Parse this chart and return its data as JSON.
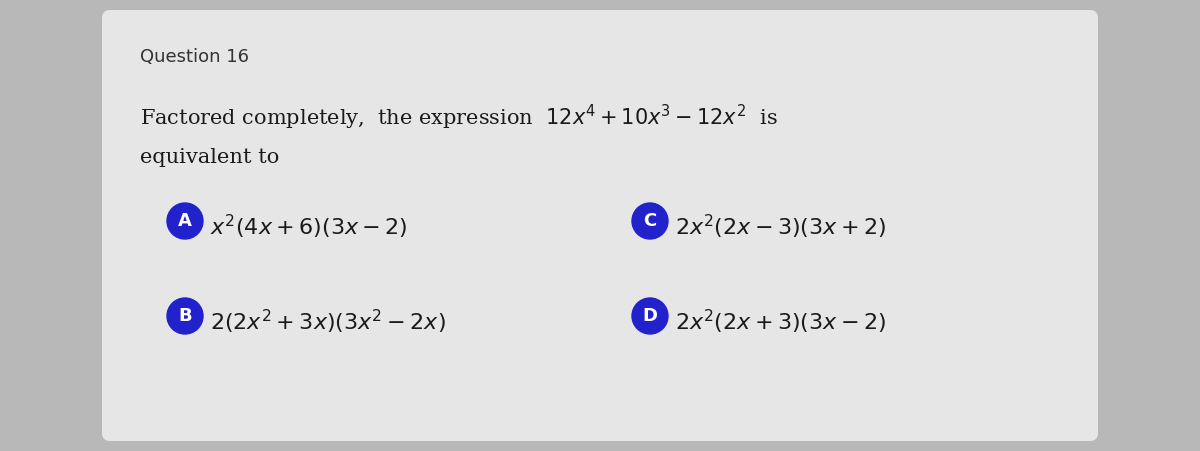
{
  "title": "Question 16",
  "q_line1": "Factored completely,  the expression  $12x^4 + 10x^3 - 12x^2$  is",
  "q_line2": "equivalent to",
  "option_A_text": "$x^2(4x + 6)(3x - 2)$",
  "option_B_text": "$2(2x^2 + 3x)(3x^2 - 2x)$",
  "option_C_text": "$2x^2(2x - 3)(3x + 2)$",
  "option_D_text": "$2x^2(2x + 3)(3x - 2)$",
  "label_A": "A",
  "label_B": "B",
  "label_C": "C",
  "label_D": "D",
  "circle_color": "#2222cc",
  "label_text_color": "#ffffff",
  "bg_card_color": "#e6e6e6",
  "bg_outer_color": "#b8b8b8",
  "title_color": "#333333",
  "question_color": "#1a1a1a",
  "option_color": "#1a1a1a",
  "title_fontsize": 13,
  "question_fontsize": 15,
  "option_fontsize": 16
}
